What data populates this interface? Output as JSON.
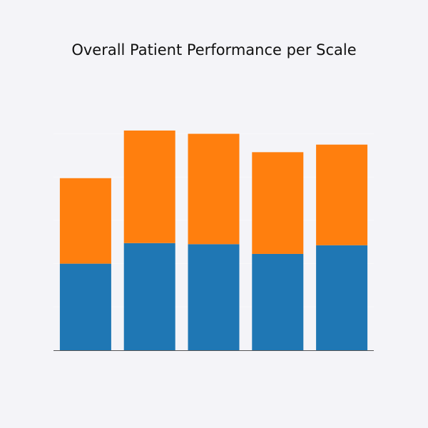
{
  "chart_data": {
    "type": "bar",
    "stacked": true,
    "title": "Overall Patient Performance per Scale",
    "xlabel": "",
    "ylabel": "",
    "categories": [
      "",
      "",
      "",
      "",
      ""
    ],
    "series": [
      {
        "values": [
          40,
          49.5,
          49,
          44.5,
          48.5
        ],
        "color": "#1f77b4"
      },
      {
        "values": [
          39.5,
          52,
          51,
          47,
          46.5
        ],
        "color": "#ff7f0e"
      }
    ],
    "ylim": [
      0,
      100
    ],
    "grid": true,
    "grid_color": "#f8f8fb",
    "axis_color": "#555555",
    "legend": false
  }
}
